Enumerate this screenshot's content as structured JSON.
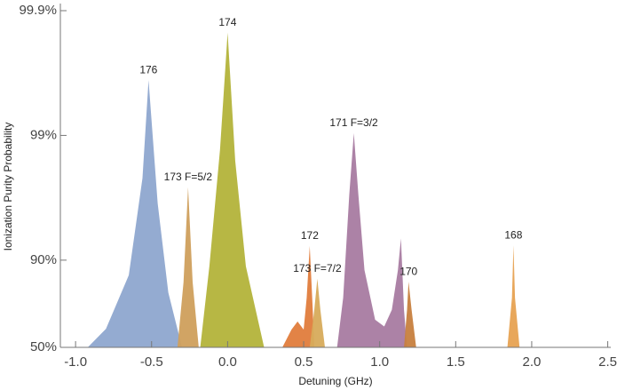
{
  "chart_data": {
    "type": "area",
    "xlabel": "Detuning (GHz)",
    "ylabel": "Ionization Purity Probability",
    "yscale": "complement-log",
    "xlim": [
      -1.1,
      2.52
    ],
    "xticks": [
      {
        "value": -1.0,
        "label": "-1.0"
      },
      -0.5,
      {
        "value": 0.0,
        "label": "0.0"
      },
      0.5,
      {
        "value": 1.0,
        "label": "1.0"
      },
      1.5,
      {
        "value": 2.0,
        "label": "2.0"
      },
      2.5
    ],
    "ylim": [
      50,
      99.9
    ],
    "yticks": [
      {
        "value": 50,
        "label": "50%"
      },
      {
        "value": 90,
        "label": "90%"
      },
      {
        "value": 99,
        "label": "99%"
      },
      {
        "value": 99.9,
        "label": "99.9%"
      }
    ],
    "series": [
      {
        "name": "176",
        "color": "#8ea6cf",
        "x": [
          -0.92,
          -0.8,
          -0.65,
          -0.56,
          -0.52,
          -0.46,
          -0.39,
          -0.3
        ],
        "values": [
          50,
          64.5,
          86.8,
          97.8,
          99.64,
          96.5,
          81.8,
          50
        ]
      },
      {
        "name": "173 F=5/2",
        "color": "#cf9f5c",
        "x": [
          -0.33,
          -0.29,
          -0.26,
          -0.23,
          -0.19
        ],
        "values": [
          50,
          85,
          97.4,
          85,
          50
        ]
      },
      {
        "name": "174",
        "color": "#b3b33a",
        "x": [
          -0.18,
          -0.12,
          -0.05,
          0.0,
          0.05,
          0.12,
          0.24
        ],
        "values": [
          50,
          88.8,
          98.7,
          99.85,
          98.4,
          88.8,
          50
        ]
      },
      {
        "name": "172",
        "color": "#e07c3c",
        "x": [
          0.36,
          0.42,
          0.46,
          0.5,
          0.52,
          0.54,
          0.56,
          0.57
        ],
        "values": [
          50,
          64,
          69,
          64,
          80,
          92.3,
          75,
          50
        ]
      },
      {
        "name": "173 F=7/2",
        "color": "#d7ab5b",
        "x": [
          0.54,
          0.57,
          0.59,
          0.61,
          0.64
        ],
        "values": [
          50,
          75,
          85.9,
          75,
          50
        ]
      },
      {
        "name": "171 F=3/2",
        "color": "#a87ba1",
        "x": [
          0.72,
          0.76,
          0.8,
          0.83,
          0.86,
          0.9,
          0.97,
          1.03,
          1.08,
          1.12,
          1.14,
          1.16,
          1.18
        ],
        "values": [
          50,
          80,
          97,
          99.04,
          97,
          88,
          70,
          66,
          75,
          88,
          93.3,
          75,
          50
        ]
      },
      {
        "name": "170",
        "color": "#c7803e",
        "x": [
          1.16,
          1.18,
          1.19,
          1.21,
          1.24
        ],
        "values": [
          50,
          75,
          85.1,
          75,
          50
        ]
      },
      {
        "name": "168",
        "color": "#e7a252",
        "x": [
          1.84,
          1.87,
          1.88,
          1.89,
          1.92
        ],
        "values": [
          50,
          80,
          92.4,
          80,
          50
        ]
      }
    ]
  }
}
